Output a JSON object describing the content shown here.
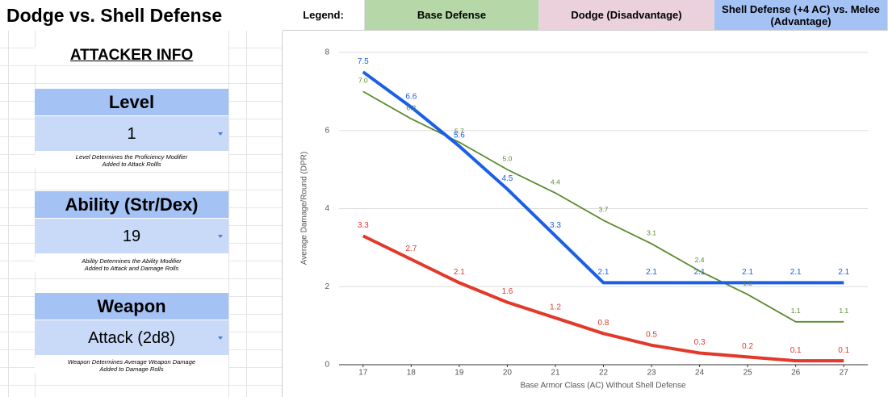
{
  "sheet": {
    "title": "Dodge vs. Shell Defense",
    "legend_label": "Legend:",
    "section": "ATTACKER INFO",
    "fields": [
      {
        "label": "Level",
        "value": "1",
        "note": [
          "Level Determines the Proficiency Modifier",
          "Added to Attack Rollls"
        ]
      },
      {
        "label": "Ability (Str/Dex)",
        "value": "19",
        "note": [
          "Ability Determines the Ability Modifier",
          "Added to Attack and Damage Rolls"
        ]
      },
      {
        "label": "Weapon",
        "value": "Attack (2d8)",
        "note": [
          "Weapon Determines Average Weapon Damage",
          "Added to Damage Rolls"
        ]
      }
    ]
  },
  "chart_data": {
    "type": "line",
    "x_label": "Base Armor Class (AC) Without Shell Defense",
    "y_label": "Average Damage/Round (DPR)",
    "x": [
      17,
      18,
      19,
      20,
      21,
      22,
      23,
      24,
      25,
      26,
      27
    ],
    "xlim": [
      16.5,
      27.5
    ],
    "xticks": [
      17,
      18,
      19,
      20,
      21,
      22,
      23,
      24,
      25,
      26,
      27
    ],
    "ylim": [
      0,
      8
    ],
    "yticks": [
      0,
      2,
      4,
      6,
      8
    ],
    "grid": true,
    "series": [
      {
        "name": "Base Defense",
        "color": "#5b8a2e",
        "legend_color": "#b6d7a8",
        "values": [
          7.0,
          6.3,
          5.7,
          5.0,
          4.4,
          3.7,
          3.1,
          2.4,
          1.8,
          1.1,
          1.1
        ],
        "value_labels": [
          "7.0",
          "6.3",
          "5.7",
          "5.0",
          "4.4",
          "3.7",
          "3.1",
          "2.4",
          "1.8",
          "1.1",
          "1.1"
        ]
      },
      {
        "name": "Dodge (Disadvantage)",
        "color": "#e2392b",
        "legend_color": "#ead1dc",
        "values": [
          3.3,
          2.7,
          2.1,
          1.6,
          1.2,
          0.8,
          0.5,
          0.3,
          0.2,
          0.1,
          0.1
        ],
        "value_labels": [
          "3.3",
          "2.7",
          "2.1",
          "1.6",
          "1.2",
          "0.8",
          "0.5",
          "0.3",
          "0.2",
          "0.1",
          "0.1"
        ]
      },
      {
        "name": "Shell Defense (+4 AC) vs. Melee (Advantage)",
        "color": "#1a5fe6",
        "legend_color": "#a4c2f4",
        "values": [
          7.5,
          6.6,
          5.6,
          4.5,
          3.3,
          2.1,
          2.1,
          2.1,
          2.1,
          2.1,
          2.1
        ],
        "value_labels": [
          "7.5",
          "6.6",
          "5.6",
          "4.5",
          "3.3",
          "2.1",
          "2.1",
          "2.1",
          "2.1",
          "2.1",
          "2.1"
        ]
      }
    ]
  }
}
